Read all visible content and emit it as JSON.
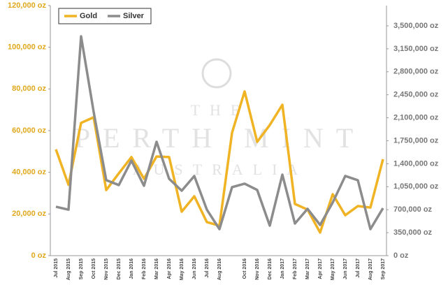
{
  "chart_data": {
    "type": "line",
    "watermark": [
      "THE",
      "PERTH MINT",
      "AUSTRALIA"
    ],
    "categories": [
      "Jul 2015",
      "Aug 2015",
      "Sep 2015",
      "Oct 2015",
      "Nov 2015",
      "Dec 2015",
      "Jan 2016",
      "Feb 2016",
      "Mar 2016",
      "Apr 2016",
      "May 2016",
      "Jun 2016",
      "Jul 2016",
      "Aug 2016",
      null,
      "Oct 2016",
      "Nov 2016",
      "Dec 2016",
      "Jan 2017",
      "Feb 2017",
      "Mar 2017",
      "Apr 2017",
      "May 2017",
      "Jun 2017",
      "Jul 2017",
      "Aug 2017",
      "Sep 2017"
    ],
    "series": [
      {
        "name": "Gold",
        "color": "#f0b323",
        "values": [
          51000,
          34000,
          63700,
          66400,
          31500,
          39500,
          47300,
          36900,
          47600,
          47300,
          21100,
          28500,
          16100,
          14400,
          59000,
          78800,
          54600,
          62700,
          72400,
          24800,
          22100,
          11100,
          29500,
          19400,
          23800,
          23100,
          46300
        ]
      },
      {
        "name": "Silver",
        "color": "#8c8c8c",
        "axis": "y2",
        "values": [
          745000,
          700000,
          3340000,
          2190000,
          1150000,
          1075000,
          1447000,
          1064000,
          1734000,
          1170000,
          989000,
          1213000,
          700000,
          404000,
          1043000,
          1096000,
          1000000,
          457000,
          1234000,
          489000,
          713000,
          468000,
          808000,
          1213000,
          1149000,
          404000,
          723000
        ]
      }
    ],
    "ylim": [
      0,
      120000
    ],
    "yticks": [
      {
        "value": 0,
        "label": "0 oz"
      },
      {
        "value": 20000,
        "label": "20,000 oz"
      },
      {
        "value": 40000,
        "label": "40,000 oz"
      },
      {
        "value": 60000,
        "label": "60,000 oz"
      },
      {
        "value": 80000,
        "label": "80,000 oz"
      },
      {
        "value": 100000,
        "label": "100,000 oz"
      },
      {
        "value": 120000,
        "label": "120,000 oz"
      }
    ],
    "y2lim": [
      0,
      3808000
    ],
    "y2ticks": [
      {
        "value": 0,
        "label": "0 oz"
      },
      {
        "value": 350000,
        "label": "350,000 oz"
      },
      {
        "value": 700000,
        "label": "700,000 oz"
      },
      {
        "value": 1050000,
        "label": "1,050,000 oz"
      },
      {
        "value": 1400000,
        "label": "1,400,000 oz"
      },
      {
        "value": 1750000,
        "label": "1,750,000 oz"
      },
      {
        "value": 2100000,
        "label": "2,100,000 oz"
      },
      {
        "value": 2450000,
        "label": "2,450,000 oz"
      },
      {
        "value": 2800000,
        "label": "2,800,000 oz"
      },
      {
        "value": 3150000,
        "label": "3,150,000 oz"
      },
      {
        "value": 3500000,
        "label": "3,500,000 oz"
      }
    ],
    "legend": "top-left"
  }
}
